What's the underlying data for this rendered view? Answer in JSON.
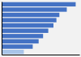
{
  "chart_data": {
    "type": "bar",
    "orientation": "horizontal",
    "categories": [
      null,
      null,
      null,
      null,
      null,
      null,
      null,
      null,
      null,
      null
    ],
    "values": [
      100,
      88,
      78,
      74,
      70,
      63,
      56,
      50,
      42,
      30
    ],
    "colors": [
      "#4472c4",
      "#4472c4",
      "#4472c4",
      "#4472c4",
      "#4472c4",
      "#4472c4",
      "#4472c4",
      "#4472c4",
      "#4472c4",
      "#a8c4e8"
    ],
    "xlim": [
      0,
      105
    ],
    "tick_labels": false
  }
}
